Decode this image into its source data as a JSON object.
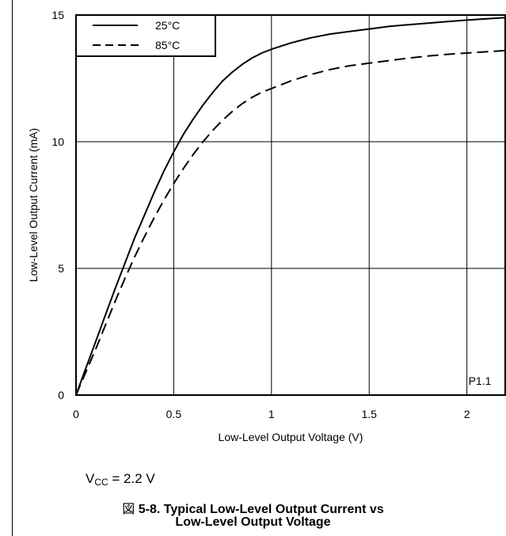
{
  "chart_data": {
    "type": "line",
    "title": "",
    "xlabel": "Low-Level Output Voltage (V)",
    "ylabel": "Low-Level Output Current (mA)",
    "xlim": [
      0,
      2.2
    ],
    "ylim": [
      0,
      15
    ],
    "x_ticks": [
      "0",
      "0.5",
      "1",
      "1.5",
      "2"
    ],
    "y_ticks": [
      "0",
      "5",
      "10",
      "15"
    ],
    "grid": true,
    "legend_position": "top-left",
    "annotation": "P1.1",
    "series": [
      {
        "name": "25°C",
        "style": "solid",
        "x": [
          0,
          0.05,
          0.1,
          0.15,
          0.2,
          0.25,
          0.3,
          0.35,
          0.4,
          0.45,
          0.5,
          0.55,
          0.6,
          0.65,
          0.7,
          0.75,
          0.8,
          0.85,
          0.9,
          0.95,
          1.0,
          1.1,
          1.2,
          1.3,
          1.4,
          1.5,
          1.6,
          1.7,
          1.8,
          1.9,
          2.0,
          2.1,
          2.2
        ],
        "y": [
          0,
          1.05,
          2.1,
          3.15,
          4.2,
          5.2,
          6.2,
          7.1,
          8.0,
          8.85,
          9.6,
          10.3,
          10.9,
          11.45,
          11.95,
          12.4,
          12.75,
          13.05,
          13.3,
          13.5,
          13.65,
          13.9,
          14.1,
          14.25,
          14.35,
          14.45,
          14.55,
          14.62,
          14.68,
          14.74,
          14.8,
          14.85,
          14.9
        ]
      },
      {
        "name": "85°C",
        "style": "dashed",
        "x": [
          0,
          0.05,
          0.1,
          0.15,
          0.2,
          0.25,
          0.3,
          0.35,
          0.4,
          0.45,
          0.5,
          0.55,
          0.6,
          0.65,
          0.7,
          0.75,
          0.8,
          0.85,
          0.9,
          0.95,
          1.0,
          1.1,
          1.2,
          1.3,
          1.4,
          1.5,
          1.6,
          1.7,
          1.8,
          1.9,
          2.0,
          2.1,
          2.2
        ],
        "y": [
          0,
          0.9,
          1.8,
          2.75,
          3.7,
          4.6,
          5.45,
          6.25,
          7.0,
          7.7,
          8.35,
          8.95,
          9.5,
          10.0,
          10.45,
          10.85,
          11.2,
          11.5,
          11.75,
          11.95,
          12.1,
          12.4,
          12.65,
          12.85,
          13.0,
          13.1,
          13.2,
          13.3,
          13.38,
          13.45,
          13.5,
          13.55,
          13.6
        ]
      }
    ]
  },
  "conditions": {
    "vcc_label": "V",
    "vcc_sub": "CC",
    "vcc_value": " = 2.2 V"
  },
  "caption": {
    "prefix": "図 ",
    "line1": "5-8. Typical Low-Level Output Current vs",
    "line2": "Low-Level Output Voltage"
  }
}
